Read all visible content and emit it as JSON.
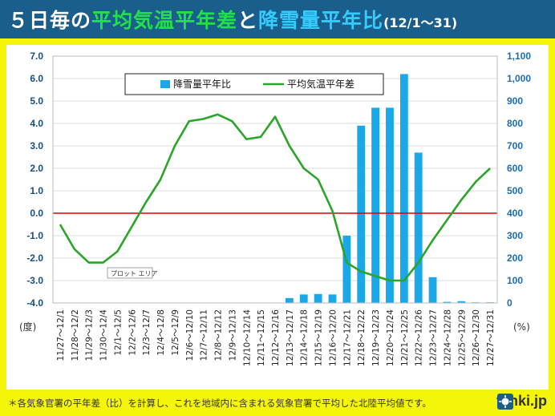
{
  "header": {
    "title_part1": "５日毎の",
    "title_part2": "平均気温平年差",
    "title_part3": "と",
    "title_part4": "降雪量平年比",
    "title_range": "(12/1～31)"
  },
  "footer": {
    "note": "＊各気象官署の平年差（比）を計算し、これを地域内に含まれる気象官署で平均した北陸平均値です。",
    "logo_text": "tenki.jp"
  },
  "colors": {
    "header_bg": "#1a5e8c",
    "background": "#f5f50a",
    "bar": "#1ba8e8",
    "line": "#2aa52a",
    "zero_line": "#e00000",
    "left_axis_text": "#1a4e7a",
    "right_axis_text": "#1a6eb0"
  },
  "chart_data": {
    "type": "bar+line",
    "categories": [
      "11/27～12/1",
      "11/28～12/2",
      "11/29～12/3",
      "11/30～12/4",
      "12/1～12/5",
      "12/2～12/6",
      "12/3～12/7",
      "12/4～12/8",
      "12/5～12/9",
      "12/6～12/10",
      "12/7～12/11",
      "12/8～12/12",
      "12/9～12/13",
      "12/10～12/14",
      "12/11～12/15",
      "12/12～12/16",
      "12/13～12/17",
      "12/14～12/18",
      "12/15～12/19",
      "12/16～12/20",
      "12/17～12/21",
      "12/18～12/22",
      "12/19～12/23",
      "12/20～12/24",
      "12/21～12/25",
      "12/22～12/26",
      "12/23～12/27",
      "12/24～12/28",
      "12/25～12/29",
      "12/26～12/30",
      "12/27～12/31"
    ],
    "series": [
      {
        "name": "降雪量平年比",
        "type": "bar",
        "axis": "right",
        "values": [
          0,
          0,
          0,
          0,
          0,
          0,
          0,
          0,
          0,
          0,
          0,
          0,
          0,
          0,
          0,
          0,
          22,
          38,
          40,
          38,
          300,
          790,
          870,
          870,
          1020,
          670,
          115,
          5,
          8,
          3,
          3
        ]
      },
      {
        "name": "平均気温平年差",
        "type": "line",
        "axis": "left",
        "values": [
          -0.5,
          -1.6,
          -2.2,
          -2.2,
          -1.7,
          -0.6,
          0.5,
          1.5,
          3.0,
          4.1,
          4.2,
          4.4,
          4.1,
          3.3,
          3.4,
          4.3,
          3.0,
          2.0,
          1.5,
          0.1,
          -2.2,
          -2.6,
          -2.8,
          -3.0,
          -3.0,
          -2.2,
          -1.2,
          -0.3,
          0.6,
          1.4,
          2.0
        ]
      }
    ],
    "y_left": {
      "min": -4.0,
      "max": 7.0,
      "ticks": [
        "-4.0",
        "-3.0",
        "-2.0",
        "-1.0",
        "0.0",
        "1.0",
        "2.0",
        "3.0",
        "4.0",
        "5.0",
        "6.0",
        "7.0"
      ],
      "unit": "(度)"
    },
    "y_right": {
      "min": 0,
      "max": 1100,
      "ticks": [
        "0",
        "100",
        "200",
        "300",
        "400",
        "500",
        "600",
        "700",
        "800",
        "900",
        "1,000",
        "1,100"
      ],
      "unit": "(%)"
    },
    "legend": {
      "bar_label": "降雪量平年比",
      "line_label": "平均気温平年差",
      "position": "top-center"
    },
    "annotation": "プロット エリア"
  }
}
